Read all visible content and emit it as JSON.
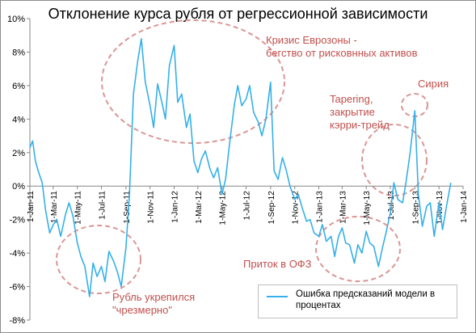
{
  "chart_data": {
    "type": "line",
    "title": "Отклонение курса рубля от регрессионной зависимости",
    "ylim": [
      -8,
      10
    ],
    "yticks": [
      -8,
      -6,
      -4,
      -2,
      0,
      2,
      4,
      6,
      8,
      10
    ],
    "ytick_labels": [
      "-8%",
      "-6%",
      "-4%",
      "-2%",
      "0%",
      "2%",
      "4%",
      "6%",
      "8%",
      "10%"
    ],
    "xlim": [
      "2011-01-01",
      "2014-01-01"
    ],
    "xticks": [
      "2011-01-01",
      "2011-03-01",
      "2011-05-01",
      "2011-07-01",
      "2011-09-01",
      "2011-11-01",
      "2012-01-01",
      "2012-03-01",
      "2012-05-01",
      "2012-07-01",
      "2012-09-01",
      "2012-11-01",
      "2013-01-01",
      "2013-03-01",
      "2013-05-01",
      "2013-07-01",
      "2013-09-01",
      "2013-11-01",
      "2014-01-01"
    ],
    "xtick_labels": [
      "1-Jan-11",
      "1-Mar-11",
      "1-May-11",
      "1-Jul-11",
      "1-Sep-11",
      "1-Nov-11",
      "1-Jan-12",
      "1-Mar-12",
      "1-May-12",
      "1-Jul-12",
      "1-Sep-12",
      "1-Nov-12",
      "1-Jan-13",
      "1-Mar-13",
      "1-May-13",
      "1-Jul-13",
      "1-Sep-13",
      "1-Nov-13",
      "1-Jan-14"
    ],
    "grid": false,
    "legend_position": "bottom-right",
    "series": [
      {
        "name": "Ошибка предсказаний модели в процентах",
        "color": "#35b0ea",
        "x": [
          "2011-01-01",
          "2011-01-08",
          "2011-01-15",
          "2011-01-22",
          "2011-02-01",
          "2011-02-10",
          "2011-02-20",
          "2011-03-01",
          "2011-03-10",
          "2011-03-20",
          "2011-04-01",
          "2011-04-10",
          "2011-04-20",
          "2011-05-01",
          "2011-05-10",
          "2011-05-20",
          "2011-06-01",
          "2011-06-10",
          "2011-06-20",
          "2011-07-01",
          "2011-07-10",
          "2011-07-20",
          "2011-08-01",
          "2011-08-10",
          "2011-08-20",
          "2011-09-01",
          "2011-09-10",
          "2011-09-20",
          "2011-10-01",
          "2011-10-10",
          "2011-10-20",
          "2011-11-01",
          "2011-11-10",
          "2011-11-20",
          "2011-12-01",
          "2011-12-10",
          "2011-12-20",
          "2012-01-01",
          "2012-01-10",
          "2012-01-20",
          "2012-02-01",
          "2012-02-10",
          "2012-02-20",
          "2012-03-01",
          "2012-03-10",
          "2012-03-20",
          "2012-04-01",
          "2012-04-10",
          "2012-04-20",
          "2012-05-01",
          "2012-05-10",
          "2012-05-20",
          "2012-06-01",
          "2012-06-10",
          "2012-06-20",
          "2012-07-01",
          "2012-07-10",
          "2012-07-20",
          "2012-08-01",
          "2012-08-10",
          "2012-08-20",
          "2012-09-01",
          "2012-09-10",
          "2012-09-20",
          "2012-10-01",
          "2012-10-10",
          "2012-10-20",
          "2012-11-01",
          "2012-11-10",
          "2012-11-20",
          "2012-12-01",
          "2012-12-10",
          "2012-12-20",
          "2013-01-01",
          "2013-01-10",
          "2013-01-20",
          "2013-02-01",
          "2013-02-10",
          "2013-02-20",
          "2013-03-01",
          "2013-03-10",
          "2013-03-20",
          "2013-04-01",
          "2013-04-10",
          "2013-04-20",
          "2013-05-01",
          "2013-05-10",
          "2013-05-20",
          "2013-06-01",
          "2013-06-10",
          "2013-06-20",
          "2013-07-01",
          "2013-07-10",
          "2013-07-20",
          "2013-08-01",
          "2013-08-10",
          "2013-08-20",
          "2013-09-01",
          "2013-09-10",
          "2013-09-20",
          "2013-10-01",
          "2013-10-10",
          "2013-10-20",
          "2013-11-01",
          "2013-11-10",
          "2013-11-20",
          "2013-12-01"
        ],
        "values": [
          2.3,
          2.7,
          1.5,
          0.9,
          0.2,
          -1.5,
          -2.8,
          -2.3,
          -2.0,
          -3.0,
          -1.7,
          -1.0,
          -1.8,
          -3.4,
          -4.2,
          -4.8,
          -6.6,
          -4.6,
          -5.4,
          -4.8,
          -5.7,
          -3.9,
          -4.5,
          -5.1,
          -6.0,
          -3.7,
          -0.5,
          5.5,
          7.5,
          8.8,
          6.2,
          4.8,
          3.5,
          6.1,
          5.0,
          4.0,
          7.2,
          8.4,
          5.0,
          5.5,
          3.5,
          4.3,
          1.5,
          0.8,
          1.6,
          2.1,
          1.0,
          0.5,
          1.1,
          -0.5,
          0.4,
          2.5,
          4.8,
          6.0,
          4.8,
          5.2,
          6.0,
          4.4,
          3.8,
          3.0,
          4.0,
          6.2,
          0.9,
          0.4,
          1.7,
          1.0,
          0.0,
          -0.8,
          -0.5,
          -1.3,
          -2.1,
          -2.0,
          -2.8,
          -3.0,
          -2.3,
          -3.3,
          -3.0,
          -4.2,
          -3.0,
          -2.5,
          -3.4,
          -3.5,
          -4.6,
          -3.5,
          -4.0,
          -2.7,
          -3.4,
          -3.6,
          -4.8,
          -3.8,
          -2.8,
          -1.6,
          0.2,
          -0.8,
          -1.0,
          0.3,
          2.0,
          4.5,
          -0.5,
          -2.4,
          -1.2,
          -1.0,
          -3.0,
          -1.0,
          -2.6,
          -1.2,
          0.2
        ]
      }
    ]
  },
  "annotations": [
    {
      "id": "eurozone",
      "text": [
        "Кризис Еврозоны -",
        "бегство от рисковнных активов"
      ]
    },
    {
      "id": "tapering",
      "text": [
        "Tapering,",
        "закрытие",
        "кэрри-трейд"
      ]
    },
    {
      "id": "syria",
      "text": [
        "Сирия"
      ]
    },
    {
      "id": "ofz",
      "text": [
        "Приток в ОФЗ"
      ]
    },
    {
      "id": "ruble",
      "text": [
        "Рубль укрепился",
        "\"чрезмерно\""
      ]
    }
  ]
}
